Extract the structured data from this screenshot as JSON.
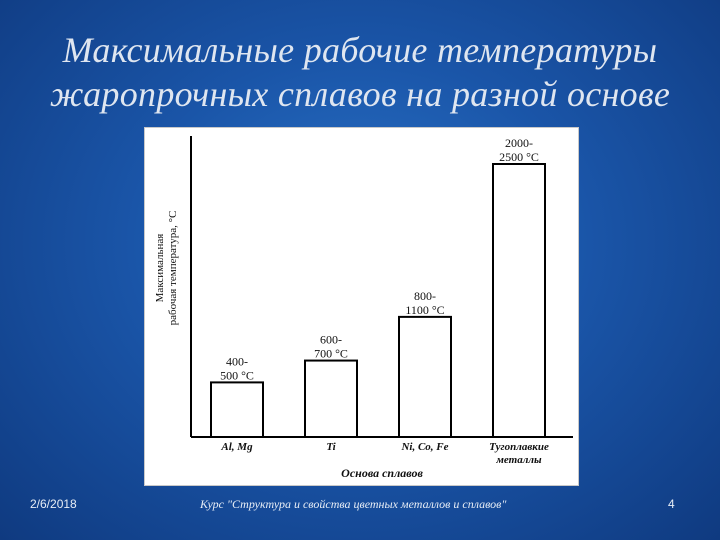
{
  "slide": {
    "title_line1": "Максимальные рабочие температуры",
    "title_line2": "жаропрочных сплавов на разной основе"
  },
  "footer": {
    "date": "2/6/2018",
    "course": "Курс \"Структура и свойства цветных металлов и сплавов\"",
    "page": "4"
  },
  "chart_data": {
    "type": "bar",
    "xlabel": "Основа сплавов",
    "ylabel_line1": "Максимальная",
    "ylabel_line2": "рабочая температура, °С",
    "categories": [
      {
        "lines": [
          "Al, Mg"
        ]
      },
      {
        "lines": [
          "Ti"
        ]
      },
      {
        "lines": [
          "Ni, Co, Fe"
        ]
      },
      {
        "lines": [
          "Тугоплавкие",
          "металлы"
        ]
      }
    ],
    "series": [
      {
        "ranges": [
          [
            400,
            500
          ],
          [
            600,
            700
          ],
          [
            800,
            1100
          ],
          [
            2000,
            2500
          ]
        ],
        "labels": [
          [
            "400-",
            "500 °C"
          ],
          [
            "600-",
            "700 °C"
          ],
          [
            "800-",
            "1100 °C"
          ],
          [
            "2000-",
            "2500 °C"
          ]
        ]
      }
    ],
    "grid": false,
    "legend": "none",
    "bar_color": "#ffffff",
    "stroke_color": "#000000"
  }
}
